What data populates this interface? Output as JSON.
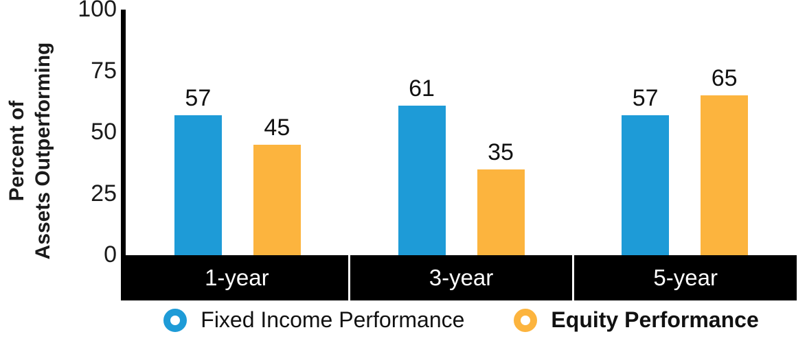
{
  "chart_data": {
    "type": "bar",
    "categories": [
      "1-year",
      "3-year",
      "5-year"
    ],
    "series": [
      {
        "name": "Fixed Income Performance",
        "color": "#1E9BD7",
        "values": [
          57,
          61,
          57
        ]
      },
      {
        "name": "Equity Performance",
        "color": "#FCB43E",
        "values": [
          45,
          35,
          65
        ]
      }
    ],
    "ylabel": "Percent of Assets Outperforming",
    "ylabel_lines": [
      "Percent of",
      "Assets Outperforming"
    ],
    "yticks": [
      0,
      25,
      50,
      75,
      100
    ],
    "ylim": [
      0,
      100
    ],
    "grid": false,
    "legend_position": "bottom",
    "colors": {
      "axis": "#000000",
      "band_bg": "#000000",
      "band_text": "#ffffff"
    }
  }
}
